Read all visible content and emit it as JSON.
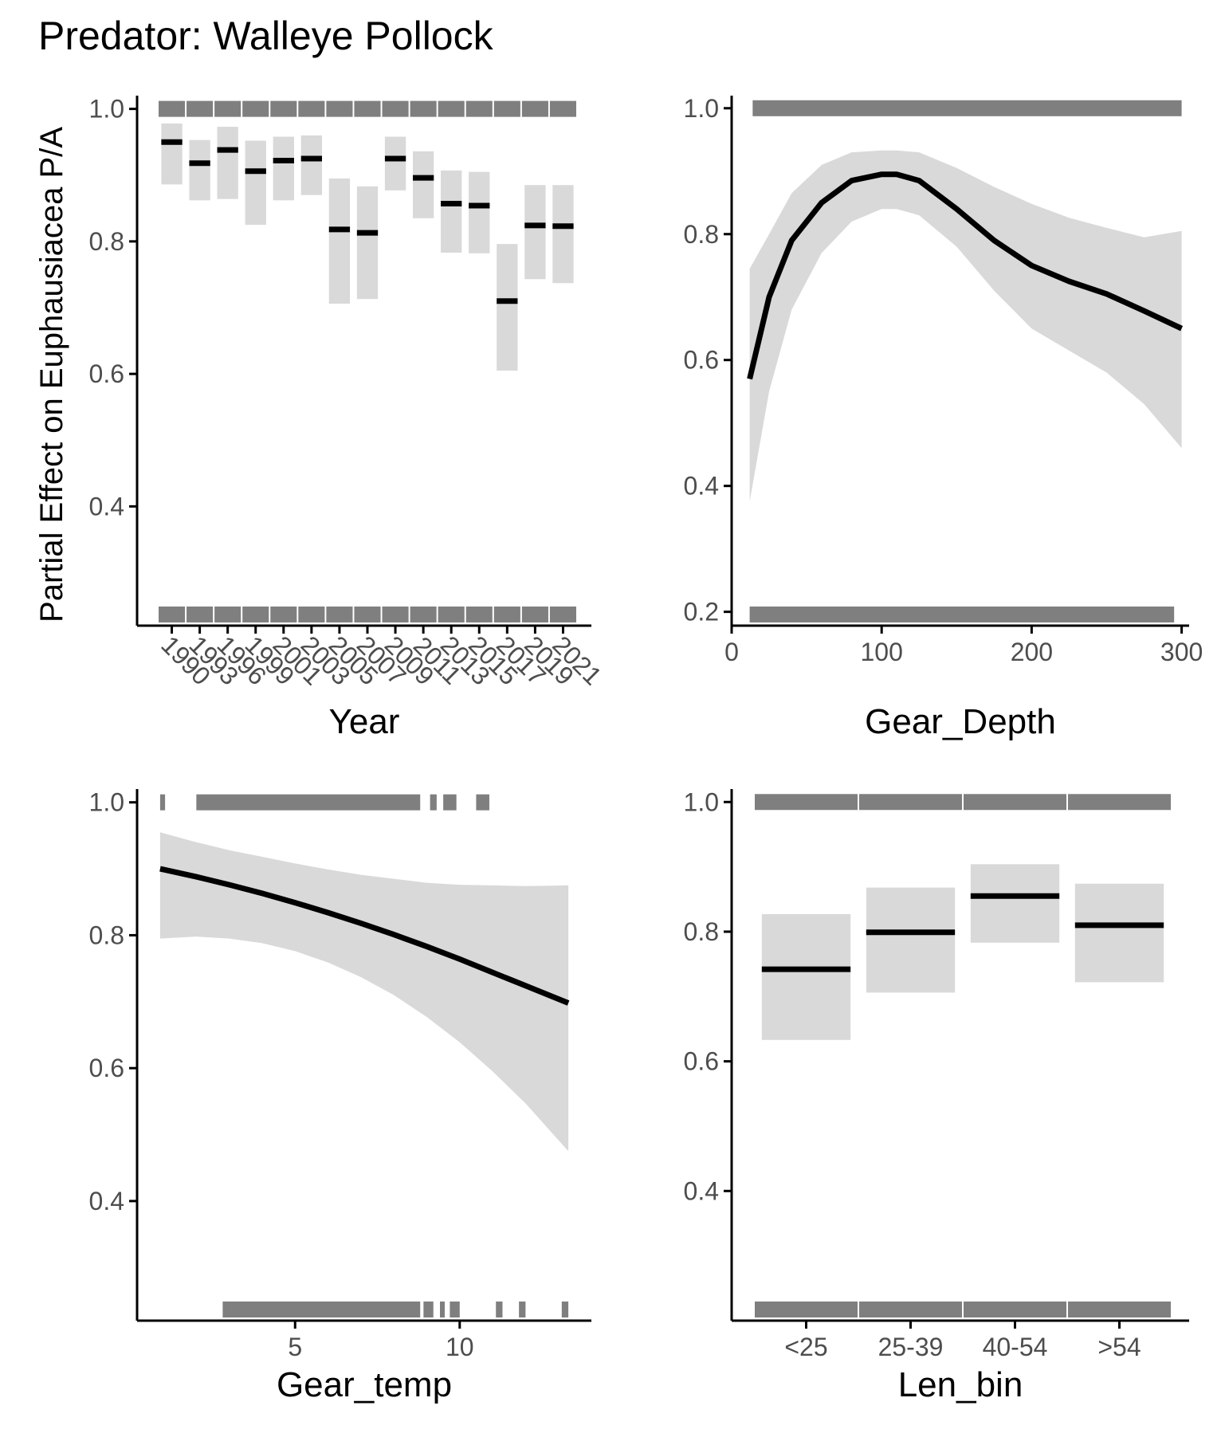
{
  "title": "Predator: Walleye Pollock",
  "ylabel": "Partial Effect on Euphausiacea P/A",
  "chart_data": [
    {
      "type": "errorbar",
      "xlabel": "Year",
      "ylim": [
        0.22,
        1.02
      ],
      "yticks": [
        0.4,
        0.6,
        0.8,
        1.0
      ],
      "categories": [
        "1990",
        "1993",
        "1996",
        "1999",
        "2001",
        "2003",
        "2005",
        "2007",
        "2009",
        "2011",
        "2013",
        "2015",
        "2017",
        "2019",
        "2021"
      ],
      "estimate": [
        0.95,
        0.918,
        0.938,
        0.906,
        0.922,
        0.925,
        0.818,
        0.813,
        0.925,
        0.896,
        0.857,
        0.854,
        0.71,
        0.824,
        0.823
      ],
      "lower": [
        0.886,
        0.862,
        0.864,
        0.825,
        0.862,
        0.87,
        0.706,
        0.713,
        0.877,
        0.835,
        0.783,
        0.782,
        0.605,
        0.743,
        0.737
      ],
      "upper": [
        0.978,
        0.953,
        0.973,
        0.952,
        0.958,
        0.96,
        0.895,
        0.883,
        0.958,
        0.936,
        0.907,
        0.905,
        0.796,
        0.885,
        0.885
      ],
      "rug_present": true,
      "rug_absent": true
    },
    {
      "type": "line",
      "xlabel": "Gear_Depth",
      "xlim": [
        0,
        305
      ],
      "ylim": [
        0.178,
        1.02
      ],
      "xticks": [
        0,
        100,
        200,
        300
      ],
      "yticks": [
        0.2,
        0.4,
        0.6,
        0.8,
        1.0
      ],
      "x": [
        12,
        25,
        40,
        60,
        80,
        100,
        110,
        125,
        150,
        175,
        200,
        225,
        250,
        275,
        300
      ],
      "y": [
        0.57,
        0.7,
        0.79,
        0.85,
        0.885,
        0.895,
        0.895,
        0.885,
        0.84,
        0.79,
        0.75,
        0.725,
        0.705,
        0.678,
        0.65
      ],
      "lower": [
        0.375,
        0.55,
        0.68,
        0.77,
        0.82,
        0.84,
        0.84,
        0.83,
        0.78,
        0.71,
        0.65,
        0.615,
        0.58,
        0.53,
        0.46
      ],
      "upper": [
        0.745,
        0.8,
        0.865,
        0.91,
        0.93,
        0.933,
        0.933,
        0.93,
        0.905,
        0.875,
        0.848,
        0.826,
        0.81,
        0.795,
        0.805
      ],
      "rug_present": [
        [
          14,
          300
        ]
      ],
      "rug_absent": [
        [
          12,
          295
        ]
      ]
    },
    {
      "type": "line",
      "xlabel": "Gear_temp",
      "xlim": [
        0.2,
        14.0
      ],
      "ylim": [
        0.22,
        1.02
      ],
      "xticks": [
        5,
        10
      ],
      "yticks": [
        0.4,
        0.6,
        0.8,
        1.0
      ],
      "x": [
        0.9,
        2,
        3,
        4,
        5,
        6,
        7,
        8,
        9,
        10,
        11,
        12,
        13.3
      ],
      "y": [
        0.9,
        0.888,
        0.876,
        0.863,
        0.849,
        0.834,
        0.818,
        0.801,
        0.783,
        0.764,
        0.744,
        0.724,
        0.698
      ],
      "lower": [
        0.795,
        0.798,
        0.795,
        0.788,
        0.776,
        0.759,
        0.737,
        0.71,
        0.677,
        0.639,
        0.595,
        0.547,
        0.475
      ],
      "upper": [
        0.955,
        0.94,
        0.928,
        0.918,
        0.908,
        0.899,
        0.891,
        0.885,
        0.879,
        0.876,
        0.875,
        0.874,
        0.875
      ],
      "rug_present": [
        [
          0.9,
          1.05
        ],
        [
          2.0,
          8.8
        ],
        [
          9.1,
          9.3
        ],
        [
          9.5,
          9.9
        ],
        [
          10.5,
          10.9
        ]
      ],
      "rug_absent": [
        [
          2.8,
          8.8
        ],
        [
          8.9,
          9.2
        ],
        [
          9.4,
          9.5
        ],
        [
          9.7,
          10.0
        ],
        [
          11.1,
          11.3
        ],
        [
          11.8,
          12.0
        ],
        [
          13.1,
          13.3
        ]
      ]
    },
    {
      "type": "errorbar",
      "xlabel": "Len_bin",
      "ylim": [
        0.2,
        1.02
      ],
      "yticks": [
        0.4,
        0.6,
        0.8,
        1.0
      ],
      "categories": [
        "<25",
        "25-39",
        "40-54",
        ">54"
      ],
      "estimate": [
        0.742,
        0.799,
        0.855,
        0.81
      ],
      "lower": [
        0.633,
        0.706,
        0.783,
        0.722
      ],
      "upper": [
        0.827,
        0.868,
        0.904,
        0.874
      ],
      "rug_present": true,
      "rug_absent": true
    }
  ]
}
